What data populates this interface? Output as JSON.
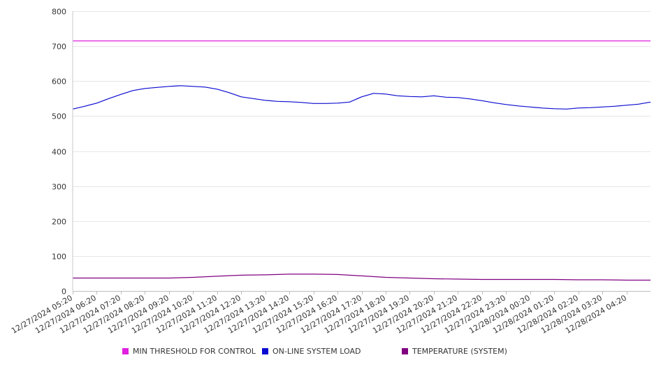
{
  "chart_data": {
    "type": "line",
    "ylim": [
      0,
      800
    ],
    "y_ticks": [
      0,
      100,
      200,
      300,
      400,
      500,
      600,
      700,
      800
    ],
    "x_ticks": [
      "12/27/2024 05:20",
      "12/27/2024 06:20",
      "12/27/2024 07:20",
      "12/27/2024 08:20",
      "12/27/2024 09:20",
      "12/27/2024 10:20",
      "12/27/2024 11:20",
      "12/27/2024 12:20",
      "12/27/2024 13:20",
      "12/27/2024 14:20",
      "12/27/2024 15:20",
      "12/27/2024 16:20",
      "12/27/2024 17:20",
      "12/27/2024 18:20",
      "12/27/2024 19:20",
      "12/27/2024 20:20",
      "12/27/2024 21:20",
      "12/27/2024 22:20",
      "12/27/2024 23:20",
      "12/28/2024 00:20",
      "12/28/2024 01:20",
      "12/28/2024 02:20",
      "12/28/2024 03:20",
      "12/28/2024 04:20"
    ],
    "x_end": "12/28/2024 05:20",
    "grid": "horizontal",
    "legend_position": "bottom",
    "series": [
      {
        "name": "MIN THRESHOLD FOR CONTROL",
        "color": "#e020e0",
        "points": [
          [
            "12/27/2024 05:20",
            715
          ],
          [
            "12/28/2024 05:20",
            715
          ]
        ]
      },
      {
        "name": "ON-LINE SYSTEM LOAD",
        "color": "#0a0ad0",
        "points": [
          [
            "12/27/2024 05:20",
            520
          ],
          [
            "12/27/2024 05:50",
            528
          ],
          [
            "12/27/2024 06:20",
            537
          ],
          [
            "12/27/2024 06:50",
            550
          ],
          [
            "12/27/2024 07:20",
            562
          ],
          [
            "12/27/2024 07:50",
            573
          ],
          [
            "12/27/2024 08:20",
            579
          ],
          [
            "12/27/2024 08:50",
            582
          ],
          [
            "12/27/2024 09:20",
            585
          ],
          [
            "12/27/2024 09:50",
            587
          ],
          [
            "12/27/2024 10:20",
            585
          ],
          [
            "12/27/2024 10:50",
            583
          ],
          [
            "12/27/2024 11:20",
            577
          ],
          [
            "12/27/2024 11:50",
            567
          ],
          [
            "12/27/2024 12:20",
            555
          ],
          [
            "12/27/2024 12:50",
            550
          ],
          [
            "12/27/2024 13:20",
            545
          ],
          [
            "12/27/2024 13:50",
            542
          ],
          [
            "12/27/2024 14:20",
            541
          ],
          [
            "12/27/2024 14:50",
            539
          ],
          [
            "12/27/2024 15:20",
            536
          ],
          [
            "12/27/2024 15:50",
            536
          ],
          [
            "12/27/2024 16:20",
            537
          ],
          [
            "12/27/2024 16:50",
            540
          ],
          [
            "12/27/2024 17:20",
            555
          ],
          [
            "12/27/2024 17:50",
            565
          ],
          [
            "12/27/2024 18:20",
            563
          ],
          [
            "12/27/2024 18:50",
            558
          ],
          [
            "12/27/2024 19:20",
            556
          ],
          [
            "12/27/2024 19:50",
            555
          ],
          [
            "12/27/2024 20:20",
            558
          ],
          [
            "12/27/2024 20:50",
            554
          ],
          [
            "12/27/2024 21:20",
            553
          ],
          [
            "12/27/2024 21:50",
            549
          ],
          [
            "12/27/2024 22:20",
            544
          ],
          [
            "12/27/2024 22:50",
            538
          ],
          [
            "12/27/2024 23:20",
            533
          ],
          [
            "12/27/2024 23:50",
            529
          ],
          [
            "12/28/2024 00:20",
            526
          ],
          [
            "12/28/2024 00:50",
            523
          ],
          [
            "12/28/2024 01:20",
            521
          ],
          [
            "12/28/2024 01:50",
            520
          ],
          [
            "12/28/2024 02:20",
            523
          ],
          [
            "12/28/2024 02:50",
            524
          ],
          [
            "12/28/2024 03:20",
            526
          ],
          [
            "12/28/2024 03:50",
            528
          ],
          [
            "12/28/2024 04:20",
            531
          ],
          [
            "12/28/2024 04:50",
            534
          ],
          [
            "12/28/2024 05:20",
            540
          ]
        ]
      },
      {
        "name": "TEMPERATURE (SYSTEM)",
        "color": "#800080",
        "points": [
          [
            "12/27/2024 05:20",
            37
          ],
          [
            "12/27/2024 09:20",
            37
          ],
          [
            "12/27/2024 10:20",
            39
          ],
          [
            "12/27/2024 11:20",
            42
          ],
          [
            "12/27/2024 12:20",
            45
          ],
          [
            "12/27/2024 13:20",
            46
          ],
          [
            "12/27/2024 14:20",
            48
          ],
          [
            "12/27/2024 15:20",
            48
          ],
          [
            "12/27/2024 16:20",
            47
          ],
          [
            "12/27/2024 17:20",
            43
          ],
          [
            "12/27/2024 18:20",
            39
          ],
          [
            "12/27/2024 19:20",
            37
          ],
          [
            "12/27/2024 20:20",
            35
          ],
          [
            "12/27/2024 21:20",
            34
          ],
          [
            "12/27/2024 22:20",
            33
          ],
          [
            "12/27/2024 23:20",
            33
          ],
          [
            "12/28/2024 00:20",
            33
          ],
          [
            "12/28/2024 01:20",
            33
          ],
          [
            "12/28/2024 02:20",
            32
          ],
          [
            "12/28/2024 03:20",
            32
          ],
          [
            "12/28/2024 04:20",
            31
          ],
          [
            "12/28/2024 05:20",
            31
          ]
        ]
      }
    ]
  }
}
